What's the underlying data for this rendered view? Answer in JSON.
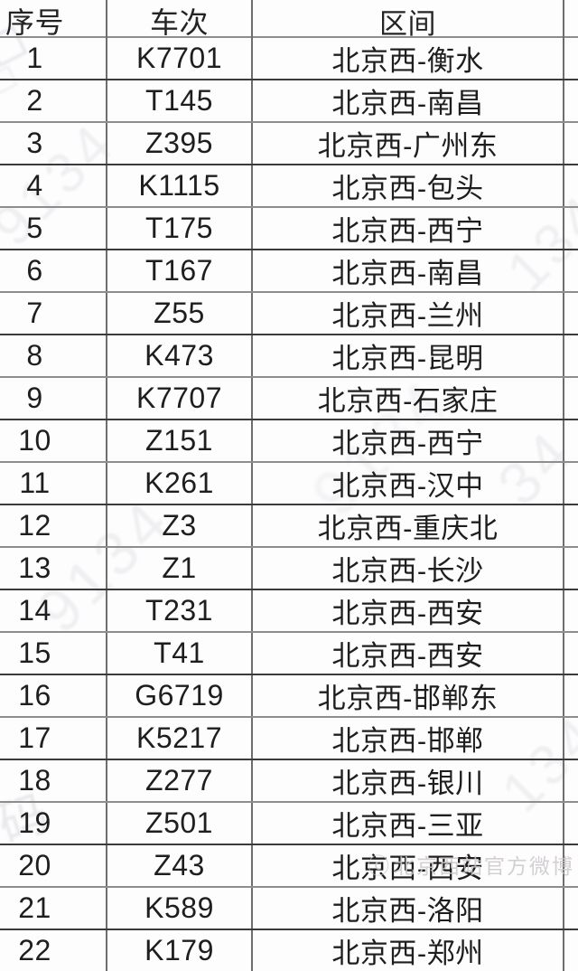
{
  "table": {
    "columns": [
      "序号",
      "车次",
      "区间"
    ],
    "rows": [
      {
        "no": "1",
        "train": "K7701",
        "route": "北京西-衡水"
      },
      {
        "no": "2",
        "train": "T145",
        "route": "北京西-南昌"
      },
      {
        "no": "3",
        "train": "Z395",
        "route": "北京西-广州东"
      },
      {
        "no": "4",
        "train": "K1115",
        "route": "北京西-包头"
      },
      {
        "no": "5",
        "train": "T175",
        "route": "北京西-西宁"
      },
      {
        "no": "6",
        "train": "T167",
        "route": "北京西-南昌"
      },
      {
        "no": "7",
        "train": "Z55",
        "route": "北京西-兰州"
      },
      {
        "no": "8",
        "train": "K473",
        "route": "北京西-昆明"
      },
      {
        "no": "9",
        "train": "K7707",
        "route": "北京西-石家庄"
      },
      {
        "no": "10",
        "train": "Z151",
        "route": "北京西-西宁"
      },
      {
        "no": "11",
        "train": "K261",
        "route": "北京西-汉中"
      },
      {
        "no": "12",
        "train": "Z3",
        "route": "北京西-重庆北"
      },
      {
        "no": "13",
        "train": "Z1",
        "route": "北京西-长沙"
      },
      {
        "no": "14",
        "train": "T231",
        "route": "北京西-西安"
      },
      {
        "no": "15",
        "train": "T41",
        "route": "北京西-西安"
      },
      {
        "no": "16",
        "train": "G6719",
        "route": "北京西-邯郸东"
      },
      {
        "no": "17",
        "train": "K5217",
        "route": "北京西-邯郸"
      },
      {
        "no": "18",
        "train": "Z277",
        "route": "北京西-银川"
      },
      {
        "no": "19",
        "train": "Z501",
        "route": "北京西-三亚"
      },
      {
        "no": "20",
        "train": "Z43",
        "route": "北京西-西安"
      },
      {
        "no": "21",
        "train": "K589",
        "route": "北京西-洛阳"
      },
      {
        "no": "22",
        "train": "K179",
        "route": "北京西-郑州"
      }
    ]
  },
  "watermarks": {
    "diagonal_text": "9134",
    "fragment_134": "134",
    "fragment_34": "34",
    "fragment_char": "码",
    "stamp_glyph": "◇",
    "credit_icon": "ⓒ",
    "credit_text": "北京西站官方微博"
  },
  "colors": {
    "rule_dark": "#3b3b3b",
    "rule_light": "#8d8d8d",
    "rule_vertical": "#6e6e6e",
    "text": "#1e1e1e",
    "watermark": "#8f8c99",
    "background": "#fdfdfe"
  }
}
